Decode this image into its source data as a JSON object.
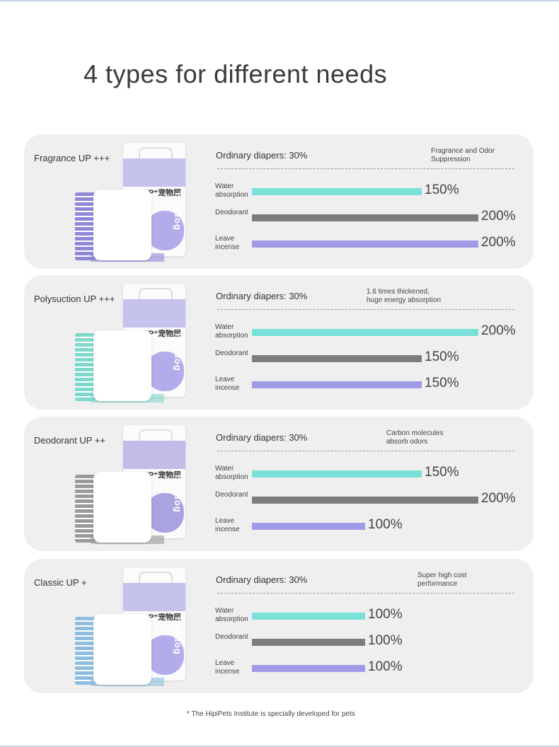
{
  "heading": "4 types for different needs",
  "footnote": "* The HipiPets Institute is specially developed for pets",
  "row_labels": {
    "water": "Water absorption",
    "deo": "Deodorant",
    "leave": "Leave incense"
  },
  "colors": {
    "water_bar": "#79e1d7",
    "deodorant_bar": "#7d7d7d",
    "leave_bar": "#9f9be6",
    "card_background": "#efefef"
  },
  "products": [
    {
      "name": "Fragrance UP +++",
      "ordinary": "Ordinary diapers: 30%",
      "note": "Fragrance and Odor Suppression",
      "water": 150,
      "deo": 200,
      "leave": 200,
      "water_label": "150%",
      "deo_label": "200%",
      "leave_label": "200%",
      "pkg_color": "#a49de6",
      "pad_color": "#8f87d8"
    },
    {
      "name": "Polysuction UP +++",
      "ordinary": "Ordinary diapers: 30%",
      "note": "1.6 times thickened, huge energy absorption",
      "water": 200,
      "deo": 150,
      "leave": 150,
      "water_label": "200%",
      "deo_label": "150%",
      "leave_label": "150%",
      "pkg_color": "#a49de6",
      "pad_color": "#7fd8cc"
    },
    {
      "name": "Deodorant UP ++",
      "ordinary": "Ordinary diapers: 30%",
      "note": "Carbon molecules absorb odors",
      "water": 150,
      "deo": 200,
      "leave": 100,
      "water_label": "150%",
      "deo_label": "200%",
      "leave_label": "100%",
      "pkg_color": "#9b93dc",
      "pad_color": "#9a9a9a"
    },
    {
      "name": "Classic UP +",
      "ordinary": "Ordinary diapers: 30%",
      "note": "Super high cost performance",
      "water": 100,
      "deo": 100,
      "leave": 100,
      "water_label": "100%",
      "deo_label": "100%",
      "leave_label": "100%",
      "pkg_color": "#a49de6",
      "pad_color": "#8ebde0"
    }
  ],
  "package_text": {
    "up": "UP⁺宠物尿垫",
    "brand": "hipidog"
  }
}
